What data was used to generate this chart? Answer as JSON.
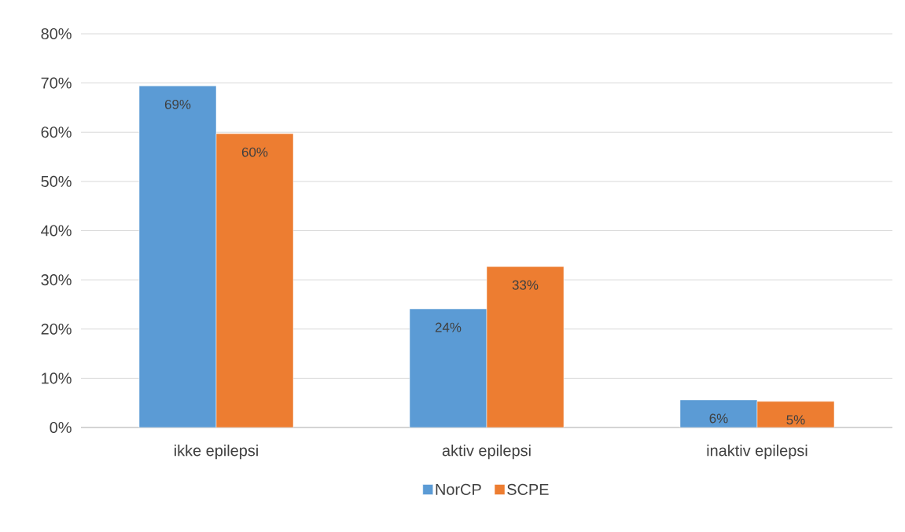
{
  "chart_data": {
    "type": "bar",
    "categories": [
      "ikke epilepsi",
      "aktiv epilepsi",
      "inaktiv epilepsi"
    ],
    "series": [
      {
        "name": "NorCP",
        "color": "#5b9bd5",
        "values": [
          69.4,
          24.1,
          5.6
        ],
        "value_labels": [
          "69%",
          "24%",
          "6%"
        ]
      },
      {
        "name": "SCPE",
        "color": "#ed7d31",
        "values": [
          59.7,
          32.7,
          5.3
        ],
        "value_labels": [
          "60%",
          "33%",
          "5%"
        ]
      }
    ],
    "ylim": [
      0,
      80
    ],
    "yticks": [
      {
        "value": 0,
        "label": "0%"
      },
      {
        "value": 10,
        "label": "10%"
      },
      {
        "value": 20,
        "label": "20%"
      },
      {
        "value": 30,
        "label": "30%"
      },
      {
        "value": 40,
        "label": "40%"
      },
      {
        "value": 50,
        "label": "50%"
      },
      {
        "value": 60,
        "label": "60%"
      },
      {
        "value": 70,
        "label": "70%"
      },
      {
        "value": 80,
        "label": "80%"
      }
    ],
    "grid": "y",
    "legend": "bottom"
  }
}
